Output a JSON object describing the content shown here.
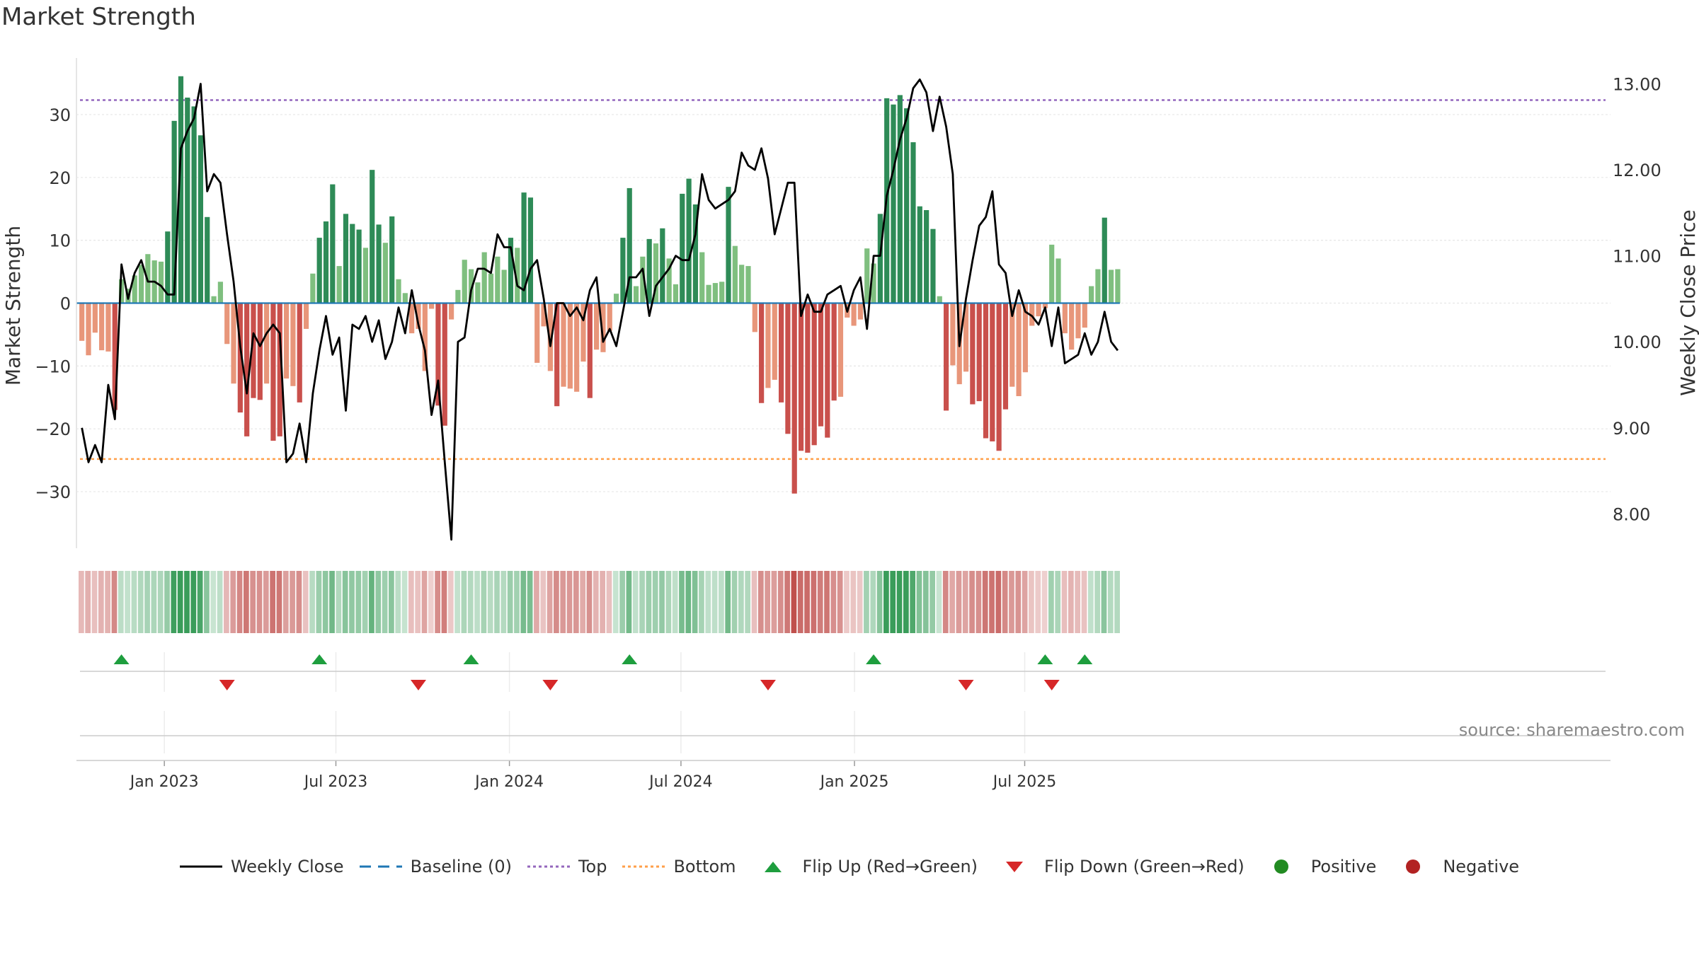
{
  "title": "Market Strength",
  "source": "source: sharemaestro.com",
  "colors": {
    "strong_pos": "#2e8b57",
    "pos": "#7fbf7f",
    "strong_neg": "#c9504c",
    "neg": "#e8967a",
    "close": "#000000",
    "baseline": "#1f77b4",
    "top": "#9467bd",
    "bottom": "#ff9f4a",
    "flip_up": "#1e9e3e",
    "flip_down": "#d62728",
    "positive": "#228b22",
    "negative": "#b22222"
  },
  "legend": [
    {
      "key": "close",
      "label": "Weekly Close"
    },
    {
      "key": "baseline",
      "label": "Baseline (0)"
    },
    {
      "key": "top",
      "label": "Top"
    },
    {
      "key": "bottom",
      "label": "Bottom"
    },
    {
      "key": "flip_up",
      "label": "Flip Up (Red→Green)"
    },
    {
      "key": "flip_down",
      "label": "Flip Down (Green→Red)"
    },
    {
      "key": "positive",
      "label": "Positive"
    },
    {
      "key": "negative",
      "label": "Negative"
    }
  ],
  "chart_data": {
    "type": "bar",
    "title": "Market Strength",
    "ylabel": "Market Strength",
    "y2label": "Weekly Close Price",
    "ylim": [
      -39,
      39
    ],
    "y2lim": [
      7.6,
      13.3
    ],
    "yticks": [
      -30,
      -20,
      -10,
      0,
      10,
      20,
      30
    ],
    "yticklabels": [
      "−30",
      "−20",
      "−10",
      "0",
      "10",
      "20",
      "30"
    ],
    "y2ticks": [
      8,
      9,
      10,
      11,
      12,
      13
    ],
    "y2ticklabels": [
      "8.00",
      "9.00",
      "10.00",
      "11.00",
      "12.00",
      "13.00"
    ],
    "top_line": 32.3,
    "bottom_line": -24.8,
    "x_start": "2022-10-03",
    "x_ticks": [
      {
        "label": "Jan 2023",
        "week": 13
      },
      {
        "label": "Jul 2023",
        "week": 39
      },
      {
        "label": "Jan 2024",
        "week": 65.3
      },
      {
        "label": "Jul 2024",
        "week": 91.3
      },
      {
        "label": "Jan 2025",
        "week": 117.6
      },
      {
        "label": "Jul 2025",
        "week": 143.4
      }
    ],
    "strength": [
      -6,
      -8.3,
      -4.7,
      -7.5,
      -7.7,
      -17,
      3.8,
      2.3,
      4.4,
      6.1,
      7.8,
      6.8,
      6.6,
      11.4,
      29,
      36.1,
      32.7,
      31.3,
      26.7,
      13.7,
      1.1,
      3.4,
      -6.5,
      -12.8,
      -17.4,
      -21.2,
      -15.1,
      -15.4,
      -12.8,
      -21.9,
      -21.2,
      -12,
      -13.2,
      -15.8,
      -4.1,
      4.7,
      10.4,
      13,
      18.9,
      5.9,
      14.2,
      12.6,
      11.7,
      8.8,
      21.2,
      12.5,
      9.6,
      13.8,
      3.8,
      1.6,
      -4.8,
      -4.1,
      -10.8,
      -0.9,
      -16.3,
      -19.5,
      -2.6,
      2.1,
      6.9,
      5.4,
      3.3,
      8.1,
      4.7,
      7.4,
      5.3,
      10.4,
      8.8,
      17.6,
      16.8,
      -9.5,
      -3.7,
      -10.8,
      -16.4,
      -13.3,
      -13.6,
      -14.1,
      -9.3,
      -15.1,
      -7.4,
      -7.8,
      -4.4,
      1.5,
      10.4,
      18.3,
      2.7,
      7.4,
      10.2,
      9.5,
      11.9,
      7.1,
      3,
      17.4,
      19.8,
      15.7,
      8.1,
      2.9,
      3.2,
      3.4,
      18.5,
      9.1,
      6.1,
      5.9,
      -4.6,
      -15.9,
      -13.5,
      -12.2,
      -15.8,
      -20.8,
      -30.3,
      -23.5,
      -23.8,
      -22.6,
      -19.6,
      -21.4,
      -15.5,
      -14.9,
      -2.3,
      -3.6,
      -2.6,
      8.7,
      6.3,
      14.2,
      32.6,
      31.6,
      33.1,
      31,
      25.6,
      15.4,
      14.8,
      11.8,
      1.1,
      -17.1,
      -9.9,
      -12.9,
      -10.9,
      -16.1,
      -15.6,
      -21.5,
      -22,
      -23.5,
      -16.9,
      -13.3,
      -14.8,
      -11,
      -3.6,
      -2.1,
      -0.8,
      9.3,
      7.1,
      -4.8,
      -7.4,
      -5.6,
      -3.9,
      2.7,
      5.4,
      13.6,
      5.3,
      5.4
    ],
    "close": [
      9.0,
      8.6,
      8.8,
      8.6,
      9.5,
      9.1,
      10.9,
      10.5,
      10.8,
      10.95,
      10.7,
      10.7,
      10.65,
      10.55,
      10.55,
      12.25,
      12.45,
      12.6,
      13.0,
      11.75,
      11.95,
      11.85,
      11.25,
      10.7,
      9.95,
      9.4,
      10.1,
      9.95,
      10.1,
      10.2,
      10.1,
      8.6,
      8.7,
      9.05,
      8.6,
      9.4,
      9.9,
      10.3,
      9.85,
      10.05,
      9.2,
      10.2,
      10.15,
      10.3,
      10.0,
      10.25,
      9.8,
      10.0,
      10.4,
      10.1,
      10.6,
      10.2,
      9.9,
      9.15,
      9.55,
      8.6,
      7.7,
      10.0,
      10.05,
      10.6,
      10.85,
      10.85,
      10.8,
      11.25,
      11.1,
      11.1,
      10.65,
      10.6,
      10.85,
      10.95,
      10.5,
      9.95,
      10.45,
      10.45,
      10.3,
      10.4,
      10.25,
      10.6,
      10.75,
      10.0,
      10.15,
      9.95,
      10.35,
      10.75,
      10.75,
      10.85,
      10.3,
      10.65,
      10.75,
      10.85,
      11.0,
      10.95,
      10.95,
      11.25,
      11.95,
      11.65,
      11.55,
      11.6,
      11.65,
      11.75,
      12.2,
      12.05,
      12.0,
      12.25,
      11.9,
      11.25,
      11.55,
      11.85,
      11.85,
      10.3,
      10.55,
      10.35,
      10.35,
      10.55,
      10.6,
      10.65,
      10.35,
      10.6,
      10.75,
      10.15,
      11.0,
      11.0,
      11.7,
      12.0,
      12.35,
      12.6,
      12.95,
      13.05,
      12.9,
      12.45,
      12.85,
      12.5,
      11.95,
      9.95,
      10.5,
      10.95,
      11.35,
      11.45,
      11.75,
      10.9,
      10.8,
      10.3,
      10.6,
      10.35,
      10.3,
      10.2,
      10.4,
      9.95,
      10.4,
      9.75,
      9.8,
      9.85,
      10.1,
      9.85,
      10.0,
      10.35,
      10.0,
      9.9
    ],
    "flip_up_weeks": [
      6,
      36,
      59,
      83,
      120,
      146,
      152
    ],
    "flip_down_weeks": [
      22,
      51,
      71,
      104,
      134,
      147
    ]
  }
}
